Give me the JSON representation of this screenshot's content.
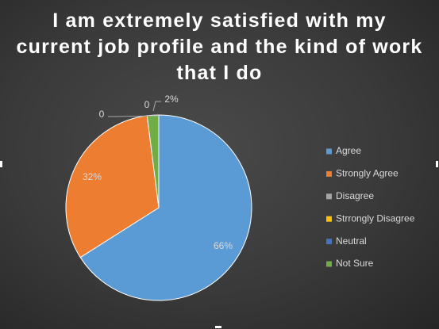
{
  "chart_data": {
    "type": "pie",
    "title": "I am extremely satisfied with my current job profile and the kind of work that I do",
    "categories": [
      "Agree",
      "Strongly Agree",
      "Disagree",
      "Strrongly Disagree",
      "Neutral",
      "Not Sure"
    ],
    "values": [
      66,
      32,
      0,
      0,
      0,
      2
    ],
    "value_labels": [
      "66%",
      "32%",
      "0",
      "0",
      null,
      "2%"
    ],
    "colors": [
      "#5b9bd5",
      "#ed7d31",
      "#a5a5a5",
      "#ffc000",
      "#4472c4",
      "#70ad47"
    ],
    "legend": "right"
  }
}
